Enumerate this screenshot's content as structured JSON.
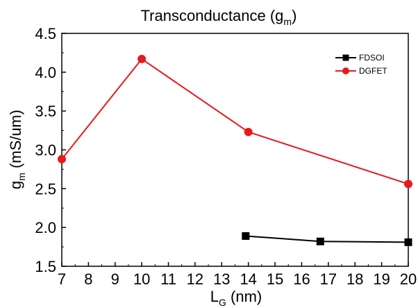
{
  "chart_data": {
    "type": "line",
    "title": "Transconductance (g",
    "title_sub": "m",
    "title_end": ")",
    "xlabel_main": "L",
    "xlabel_sub": "G",
    "xlabel_end": " (nm)",
    "ylabel_main": "g",
    "ylabel_sub": "m",
    "ylabel_end": " (mS/um)",
    "xlim": [
      7,
      20
    ],
    "ylim": [
      1.5,
      4.5
    ],
    "xticks": [
      7,
      8,
      9,
      10,
      11,
      12,
      13,
      14,
      15,
      16,
      17,
      18,
      19,
      20
    ],
    "yticks": [
      "1.5",
      "2.0",
      "2.5",
      "3.0",
      "3.5",
      "4.0",
      "4.5"
    ],
    "legend_position": "top-right",
    "grid": false,
    "series": [
      {
        "name": "FDSOI",
        "color": "#000000",
        "marker": "square",
        "x": [
          13.9,
          16.7,
          20
        ],
        "y": [
          1.89,
          1.82,
          1.81
        ]
      },
      {
        "name": "DGFET",
        "color": "#e8191b",
        "marker": "circle",
        "x": [
          7,
          10,
          14,
          20
        ],
        "y": [
          2.88,
          4.17,
          3.23,
          2.56
        ]
      }
    ]
  }
}
